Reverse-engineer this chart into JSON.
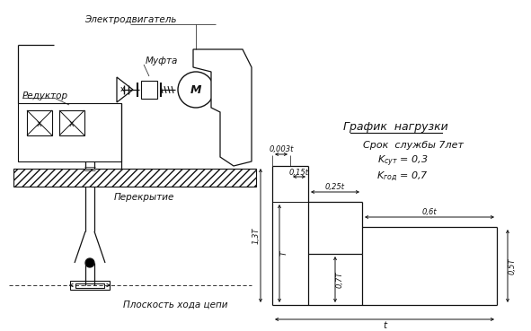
{
  "title_graph": "График  нагрузки",
  "subtitle": "Срок  службы 7лет",
  "k_sut": "K",
  "k_sut_sub": "сут",
  "k_sut_val": " = 0,3",
  "k_god": "K",
  "k_god_sub": "год",
  "k_god_val": " = 0,7",
  "label_reducer": "Редуктор",
  "label_motor": "Электродвигатель",
  "label_coupling": "Муфта",
  "label_overlap": "Перекрытие",
  "label_chain": "Плоскость хода цепи",
  "dim_0003t": "0,003t",
  "dim_015t": "0,15t",
  "dim_025t": "0,25t",
  "dim_06t": "0,6t",
  "dim_13T": "1,3T",
  "dim_T": "T",
  "dim_07T": "0,7T",
  "dim_05T": "0,5T",
  "dim_t": "t",
  "lc": "#111111"
}
